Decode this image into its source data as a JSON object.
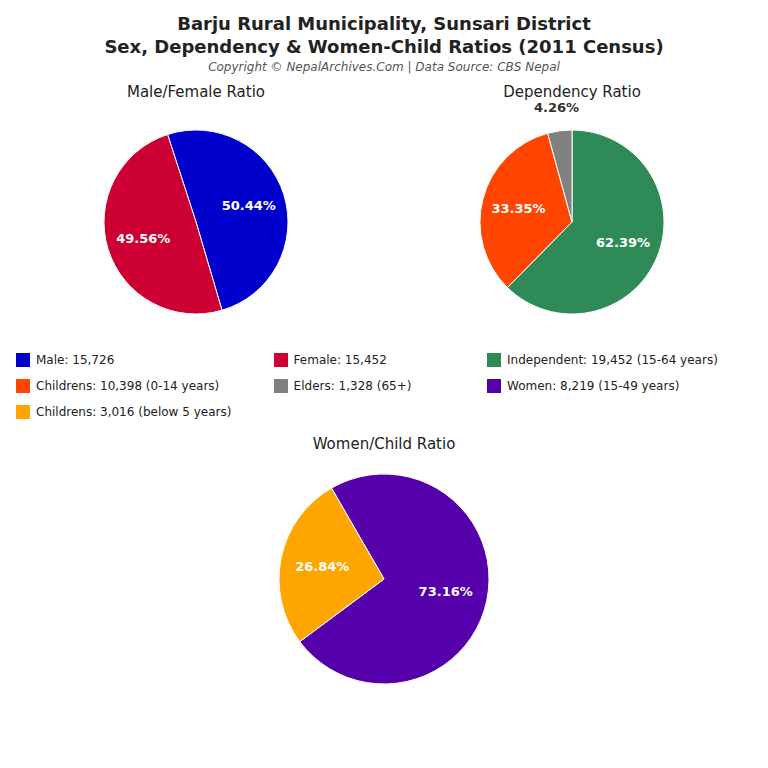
{
  "title": "Barju Rural Municipality, Sunsari District",
  "subtitle": "Sex, Dependency & Women-Child Ratios (2011 Census)",
  "annotations": [
    "Copyright © NepalArchives.Com | Data Source: CBS Nepal"
  ],
  "chart_data": [
    {
      "type": "pie",
      "title": "Male/Female Ratio",
      "categories": [
        "Male: 15,726",
        "Female: 15,452"
      ],
      "values": [
        50.44,
        49.56
      ],
      "value_labels": [
        "50.44%",
        "49.56%"
      ],
      "colors": [
        "#0000CD",
        "#CC0033"
      ],
      "data_labels": true,
      "legend": "bottom"
    },
    {
      "type": "pie",
      "title": "Dependency Ratio",
      "categories": [
        "Independent: 19,452 (15-64 years)",
        "Childrens: 10,398 (0-14 years)",
        "Elders: 1,328 (65+)"
      ],
      "values": [
        62.39,
        33.35,
        4.26
      ],
      "value_labels": [
        "62.39%",
        "33.35%",
        "4.26%"
      ],
      "colors": [
        "#2E8B57",
        "#FF4500",
        "#808080"
      ],
      "data_labels": true,
      "legend": "bottom"
    },
    {
      "type": "pie",
      "title": "Women/Child Ratio",
      "categories": [
        "Women: 8,219 (15-49 years)",
        "Childrens: 3,016 (below 5 years)"
      ],
      "values": [
        73.16,
        26.84
      ],
      "value_labels": [
        "73.16%",
        "26.84%"
      ],
      "colors": [
        "#5500AA",
        "#FFA500"
      ],
      "data_labels": true,
      "legend": "top"
    }
  ]
}
